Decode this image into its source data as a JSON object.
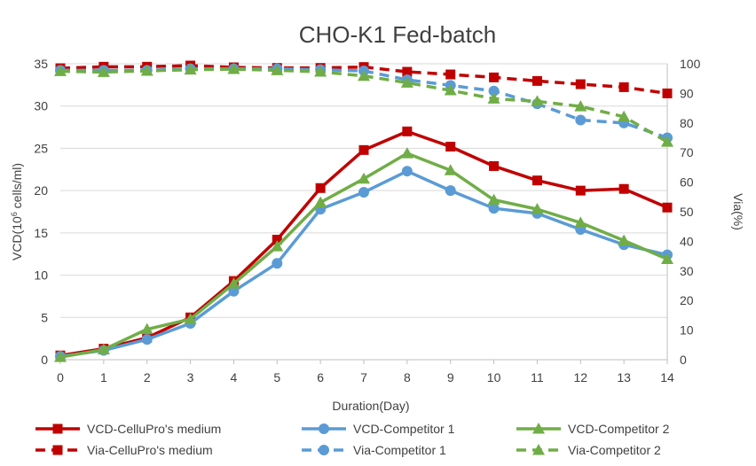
{
  "chart_data": {
    "type": "line",
    "title": "CHO-K1 Fed-batch",
    "xlabel": "Duration(Day)",
    "ylabel_left": "VCD(10",
    "ylabel_left_sup": "6",
    "ylabel_left_suffix": " cells/ml)",
    "ylabel_right": "Via(%)",
    "x": [
      0,
      1,
      2,
      3,
      4,
      5,
      6,
      7,
      8,
      9,
      10,
      11,
      12,
      13,
      14
    ],
    "ylim_left": [
      0,
      35
    ],
    "yticks_left": [
      0,
      5,
      10,
      15,
      20,
      25,
      30,
      35
    ],
    "ylim_right": [
      0,
      100
    ],
    "yticks_right": [
      0,
      10,
      20,
      30,
      40,
      50,
      60,
      70,
      80,
      90,
      100
    ],
    "grid": true,
    "legend_position": "bottom",
    "series": [
      {
        "name": "VCD-CelluPro's medium",
        "axis": "left",
        "style": "solid",
        "marker": "square",
        "color": "#C00000",
        "values": [
          0.5,
          1.3,
          2.6,
          5.0,
          9.3,
          14.2,
          20.3,
          24.8,
          27.0,
          25.2,
          22.9,
          21.2,
          20.0,
          20.2,
          18.0
        ]
      },
      {
        "name": "VCD-Competitor 1",
        "axis": "left",
        "style": "solid",
        "marker": "circle",
        "color": "#5B9BD5",
        "values": [
          0.4,
          1.1,
          2.4,
          4.3,
          8.1,
          11.4,
          17.8,
          19.8,
          22.3,
          20.0,
          17.9,
          17.3,
          15.4,
          13.6,
          12.4
        ]
      },
      {
        "name": "VCD-Competitor 2",
        "axis": "left",
        "style": "solid",
        "marker": "triangle",
        "color": "#70AD47",
        "values": [
          0.3,
          1.2,
          3.6,
          4.8,
          9.0,
          13.4,
          18.6,
          21.4,
          24.4,
          22.4,
          18.9,
          17.8,
          16.2,
          14.1,
          11.9
        ]
      },
      {
        "name": "Via-CelluPro's medium",
        "axis": "right",
        "style": "dashed",
        "marker": "square",
        "color": "#C00000",
        "values": [
          98.5,
          99.0,
          99.0,
          99.4,
          98.8,
          98.6,
          98.6,
          98.9,
          97.3,
          96.4,
          95.4,
          94.2,
          93.1,
          92.1,
          90.0
        ]
      },
      {
        "name": "Via-Competitor 1",
        "axis": "right",
        "style": "dashed",
        "marker": "circle",
        "color": "#5B9BD5",
        "values": [
          97.8,
          97.8,
          97.8,
          98.3,
          98.3,
          98.3,
          98.0,
          97.6,
          94.6,
          92.7,
          90.8,
          86.5,
          81.0,
          80.0,
          75.0
        ]
      },
      {
        "name": "Via-Competitor 2",
        "axis": "right",
        "style": "dashed",
        "marker": "triangle",
        "color": "#70AD47",
        "values": [
          97.5,
          97.2,
          97.6,
          98.0,
          98.2,
          97.8,
          97.3,
          95.9,
          93.6,
          91.0,
          88.2,
          87.3,
          85.6,
          82.1,
          73.6
        ]
      }
    ],
    "legend": [
      {
        "label": "VCD-CelluPro's medium",
        "series": 0
      },
      {
        "label": "VCD-Competitor 1",
        "series": 1
      },
      {
        "label": "VCD-Competitor 2",
        "series": 2
      },
      {
        "label": "Via-CelluPro's medium",
        "series": 3
      },
      {
        "label": "Via-Competitor 1",
        "series": 4
      },
      {
        "label": "Via-Competitor 2",
        "series": 5
      }
    ]
  }
}
